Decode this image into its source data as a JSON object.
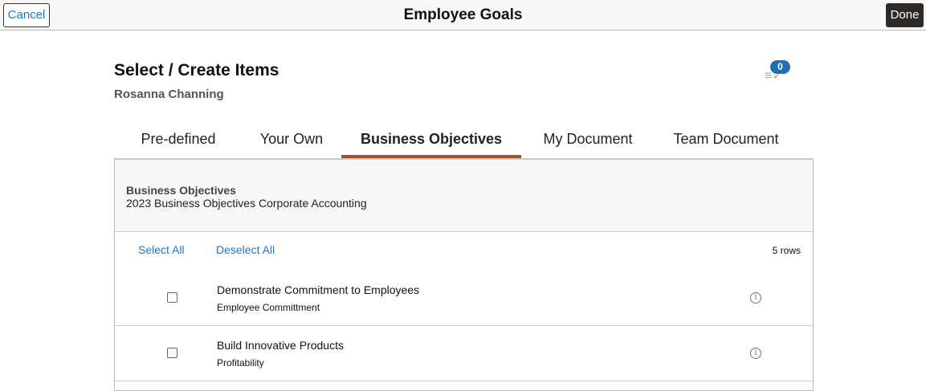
{
  "header": {
    "cancel_label": "Cancel",
    "title": "Employee Goals",
    "done_label": "Done"
  },
  "page": {
    "title": "Select / Create Items",
    "employee": "Rosanna Channing",
    "selected_count": "0"
  },
  "tabs": [
    {
      "label": "Pre-defined"
    },
    {
      "label": "Your Own"
    },
    {
      "label": "Business Objectives",
      "active": true
    },
    {
      "label": "My Document"
    },
    {
      "label": "Team Document"
    }
  ],
  "panel": {
    "heading": "Business Objectives",
    "subheading": "2023 Business Objectives Corporate Accounting",
    "select_all": "Select All",
    "deselect_all": "Deselect All",
    "row_count": "5 rows",
    "items": [
      {
        "title": "Demonstrate Commitment to Employees",
        "category": "Employee Committment"
      },
      {
        "title": "Build Innovative Products",
        "category": "Profitability"
      }
    ]
  },
  "colors": {
    "accent": "#1f78c1",
    "tab_underline": "#a0512d",
    "badge": "#1f6fb2"
  }
}
